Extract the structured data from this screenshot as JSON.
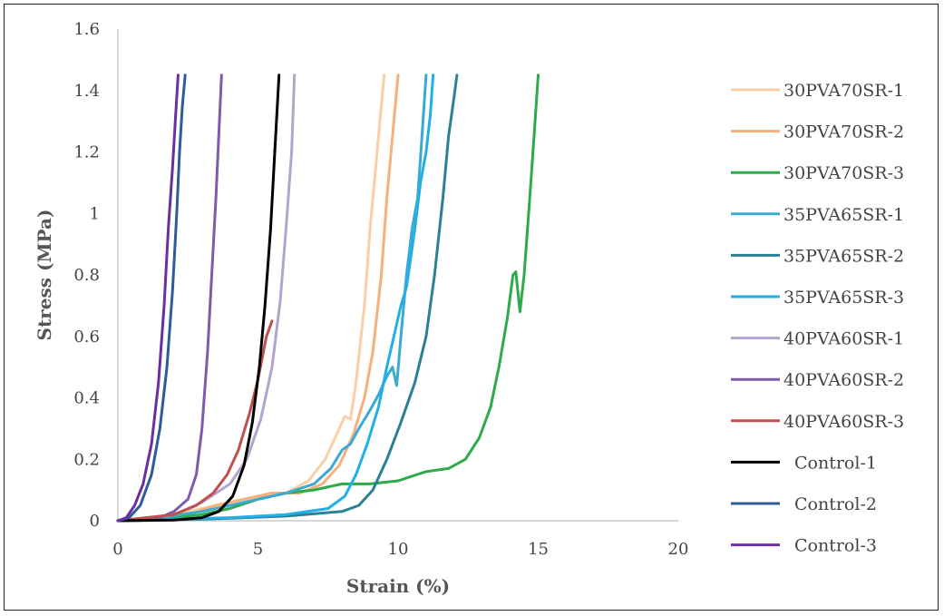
{
  "chart_data": {
    "type": "line",
    "title": "",
    "xlabel": "Strain (%)",
    "ylabel": "Stress (MPa)",
    "xlim": [
      0,
      20
    ],
    "ylim": [
      0,
      1.6
    ],
    "x_ticks": [
      "0",
      "5",
      "10",
      "15",
      "20"
    ],
    "y_ticks": [
      "0",
      "0.2",
      "0.4",
      "0.6",
      "0.8",
      "1",
      "1.2",
      "1.4",
      "1.6"
    ],
    "grid": false,
    "legend_position": "right",
    "series": [
      {
        "name": "30PVA70SR-1",
        "color": "#f8cfa6",
        "x": [
          0,
          1.0,
          2.0,
          3.0,
          4.0,
          5.0,
          6.0,
          6.8,
          7.4,
          7.9,
          8.1,
          8.3,
          8.5,
          8.8,
          9.0,
          9.2,
          9.4,
          9.5
        ],
        "y": [
          0,
          0.005,
          0.02,
          0.04,
          0.06,
          0.08,
          0.09,
          0.13,
          0.2,
          0.3,
          0.34,
          0.33,
          0.45,
          0.7,
          0.95,
          1.15,
          1.35,
          1.45
        ]
      },
      {
        "name": "30PVA70SR-2",
        "color": "#f5b07c",
        "x": [
          0,
          1.5,
          2.5,
          3.5,
          4.5,
          5.5,
          6.5,
          7.3,
          7.9,
          8.4,
          8.8,
          9.1,
          9.4,
          9.6,
          9.8,
          10.0
        ],
        "y": [
          0,
          0.005,
          0.02,
          0.05,
          0.07,
          0.09,
          0.09,
          0.12,
          0.18,
          0.28,
          0.4,
          0.55,
          0.8,
          1.05,
          1.25,
          1.45
        ]
      },
      {
        "name": "30PVA70SR-3",
        "color": "#2eaa4a",
        "x": [
          0,
          1.0,
          2.0,
          3.0,
          4.0,
          5.0,
          6.0,
          7.0,
          8.0,
          9.0,
          10.0,
          11.0,
          11.8,
          12.4,
          12.9,
          13.3,
          13.6,
          13.9,
          14.1,
          14.2,
          14.35,
          14.5,
          14.7,
          14.85,
          15.0
        ],
        "y": [
          0,
          0.005,
          0.01,
          0.02,
          0.04,
          0.07,
          0.09,
          0.1,
          0.12,
          0.12,
          0.13,
          0.16,
          0.17,
          0.2,
          0.27,
          0.37,
          0.5,
          0.66,
          0.8,
          0.81,
          0.68,
          0.8,
          1.05,
          1.25,
          1.45
        ]
      },
      {
        "name": "35PVA65SR-1",
        "color": "#3aaad2",
        "x": [
          0,
          1.5,
          3.0,
          4.5,
          6.0,
          7.0,
          7.6,
          8.0,
          8.3,
          8.6,
          9.0,
          9.3,
          9.6,
          9.8,
          9.95,
          10.1,
          10.3,
          10.5,
          10.7,
          10.85,
          11.0
        ],
        "y": [
          0,
          0.01,
          0.03,
          0.06,
          0.09,
          0.12,
          0.17,
          0.23,
          0.25,
          0.3,
          0.36,
          0.41,
          0.47,
          0.5,
          0.44,
          0.6,
          0.8,
          0.95,
          1.05,
          1.25,
          1.45
        ]
      },
      {
        "name": "35PVA65SR-2",
        "color": "#2a8095",
        "x": [
          0,
          2.0,
          4.0,
          6.0,
          8.0,
          8.6,
          9.1,
          9.6,
          10.1,
          10.6,
          11.0,
          11.3,
          11.6,
          11.8,
          12.0,
          12.1
        ],
        "y": [
          0,
          0.003,
          0.008,
          0.015,
          0.03,
          0.05,
          0.1,
          0.2,
          0.32,
          0.45,
          0.6,
          0.8,
          1.05,
          1.25,
          1.38,
          1.45
        ]
      },
      {
        "name": "35PVA65SR-3",
        "color": "#22aee6",
        "x": [
          0,
          2.0,
          4.0,
          6.0,
          7.5,
          8.1,
          8.5,
          8.9,
          9.3,
          9.6,
          9.9,
          10.1,
          10.3,
          10.6,
          10.8,
          11.0,
          11.15,
          11.25
        ],
        "y": [
          0,
          0.005,
          0.01,
          0.02,
          0.04,
          0.08,
          0.15,
          0.25,
          0.37,
          0.5,
          0.62,
          0.7,
          0.76,
          0.95,
          1.1,
          1.2,
          1.32,
          1.45
        ]
      },
      {
        "name": "40PVA60SR-1",
        "color": "#b3a3cf",
        "x": [
          0,
          1.0,
          2.0,
          3.0,
          4.0,
          4.6,
          5.1,
          5.5,
          5.8,
          6.0,
          6.2,
          6.3
        ],
        "y": [
          0,
          0.005,
          0.02,
          0.06,
          0.12,
          0.2,
          0.33,
          0.5,
          0.72,
          0.95,
          1.2,
          1.45
        ]
      },
      {
        "name": "40PVA60SR-2",
        "color": "#7e5aab",
        "x": [
          0,
          0.8,
          1.5,
          2.0,
          2.5,
          2.8,
          3.0,
          3.2,
          3.35,
          3.5,
          3.6,
          3.7
        ],
        "y": [
          0,
          0.003,
          0.01,
          0.03,
          0.07,
          0.15,
          0.3,
          0.55,
          0.8,
          1.05,
          1.25,
          1.45
        ]
      },
      {
        "name": "40PVA60SR-3",
        "color": "#c0504d",
        "x": [
          0,
          1.0,
          2.0,
          2.8,
          3.4,
          3.9,
          4.3,
          4.7,
          5.0,
          5.3,
          5.5
        ],
        "y": [
          0,
          0.01,
          0.02,
          0.05,
          0.09,
          0.15,
          0.23,
          0.35,
          0.46,
          0.6,
          0.65
        ]
      },
      {
        "name": "Control-1",
        "color": "#000000",
        "x": [
          0,
          2.0,
          3.0,
          3.6,
          4.1,
          4.5,
          4.8,
          5.05,
          5.25,
          5.45,
          5.6,
          5.75
        ],
        "y": [
          0,
          0.002,
          0.01,
          0.03,
          0.08,
          0.18,
          0.32,
          0.5,
          0.7,
          0.95,
          1.2,
          1.45
        ]
      },
      {
        "name": "Control-2",
        "color": "#2e5c96",
        "x": [
          0,
          0.4,
          0.8,
          1.2,
          1.5,
          1.75,
          1.95,
          2.1,
          2.2,
          2.3,
          2.4
        ],
        "y": [
          0,
          0.01,
          0.05,
          0.15,
          0.3,
          0.5,
          0.75,
          1.0,
          1.2,
          1.35,
          1.45
        ]
      },
      {
        "name": "Control-3",
        "color": "#6a2fa0",
        "x": [
          0,
          0.3,
          0.6,
          0.9,
          1.2,
          1.45,
          1.65,
          1.8,
          1.95,
          2.05,
          2.15
        ],
        "y": [
          0,
          0.01,
          0.05,
          0.12,
          0.25,
          0.45,
          0.7,
          0.95,
          1.15,
          1.3,
          1.45
        ]
      }
    ]
  }
}
